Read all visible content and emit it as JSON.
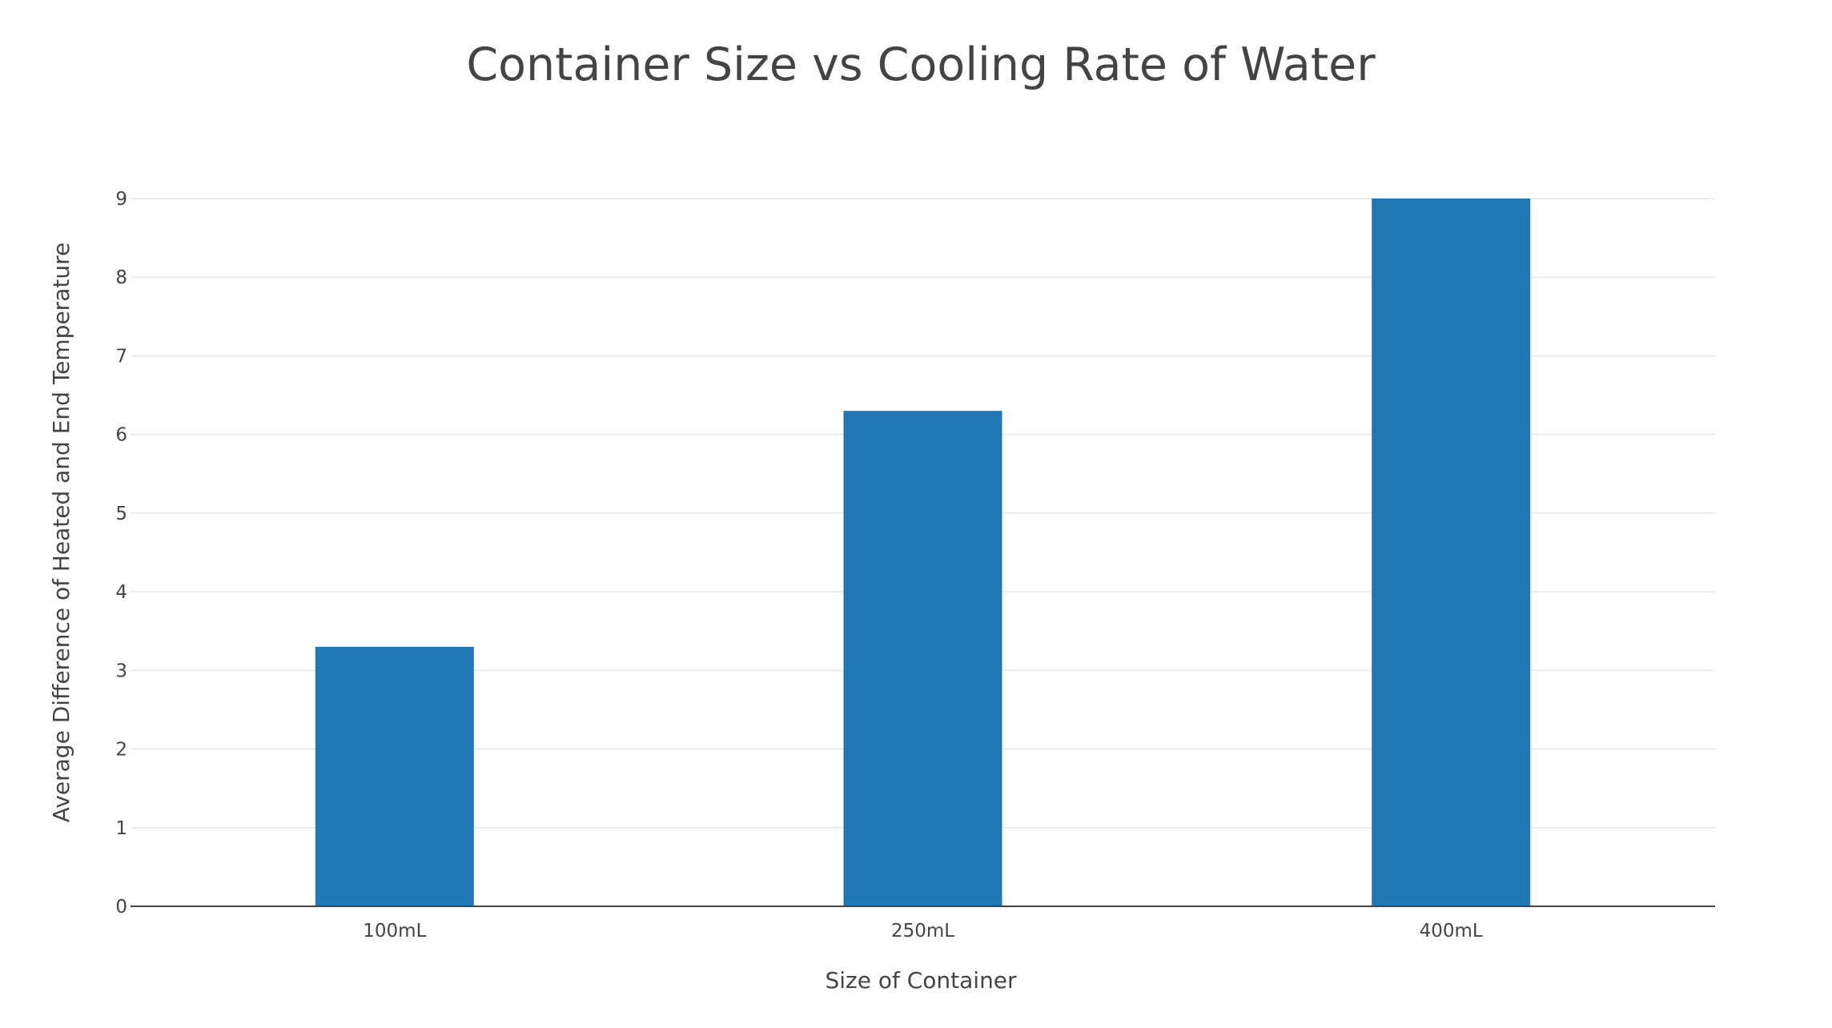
{
  "chart_data": {
    "type": "bar",
    "title": "Container Size vs Cooling Rate of Water",
    "xlabel": "Size of Container",
    "ylabel": "Average Difference of Heated and End Temperature",
    "categories": [
      "100mL",
      "250mL",
      "400mL"
    ],
    "values": [
      3.3,
      6.3,
      9
    ],
    "ylim": [
      0,
      9
    ],
    "yticks": [
      0,
      1,
      2,
      3,
      4,
      5,
      6,
      7,
      8,
      9
    ],
    "grid": true,
    "legend": "none",
    "colors": {
      "bar": "#1f77b4",
      "grid": "#e6e6e6",
      "axis": "#444444",
      "text": "#444444"
    }
  }
}
